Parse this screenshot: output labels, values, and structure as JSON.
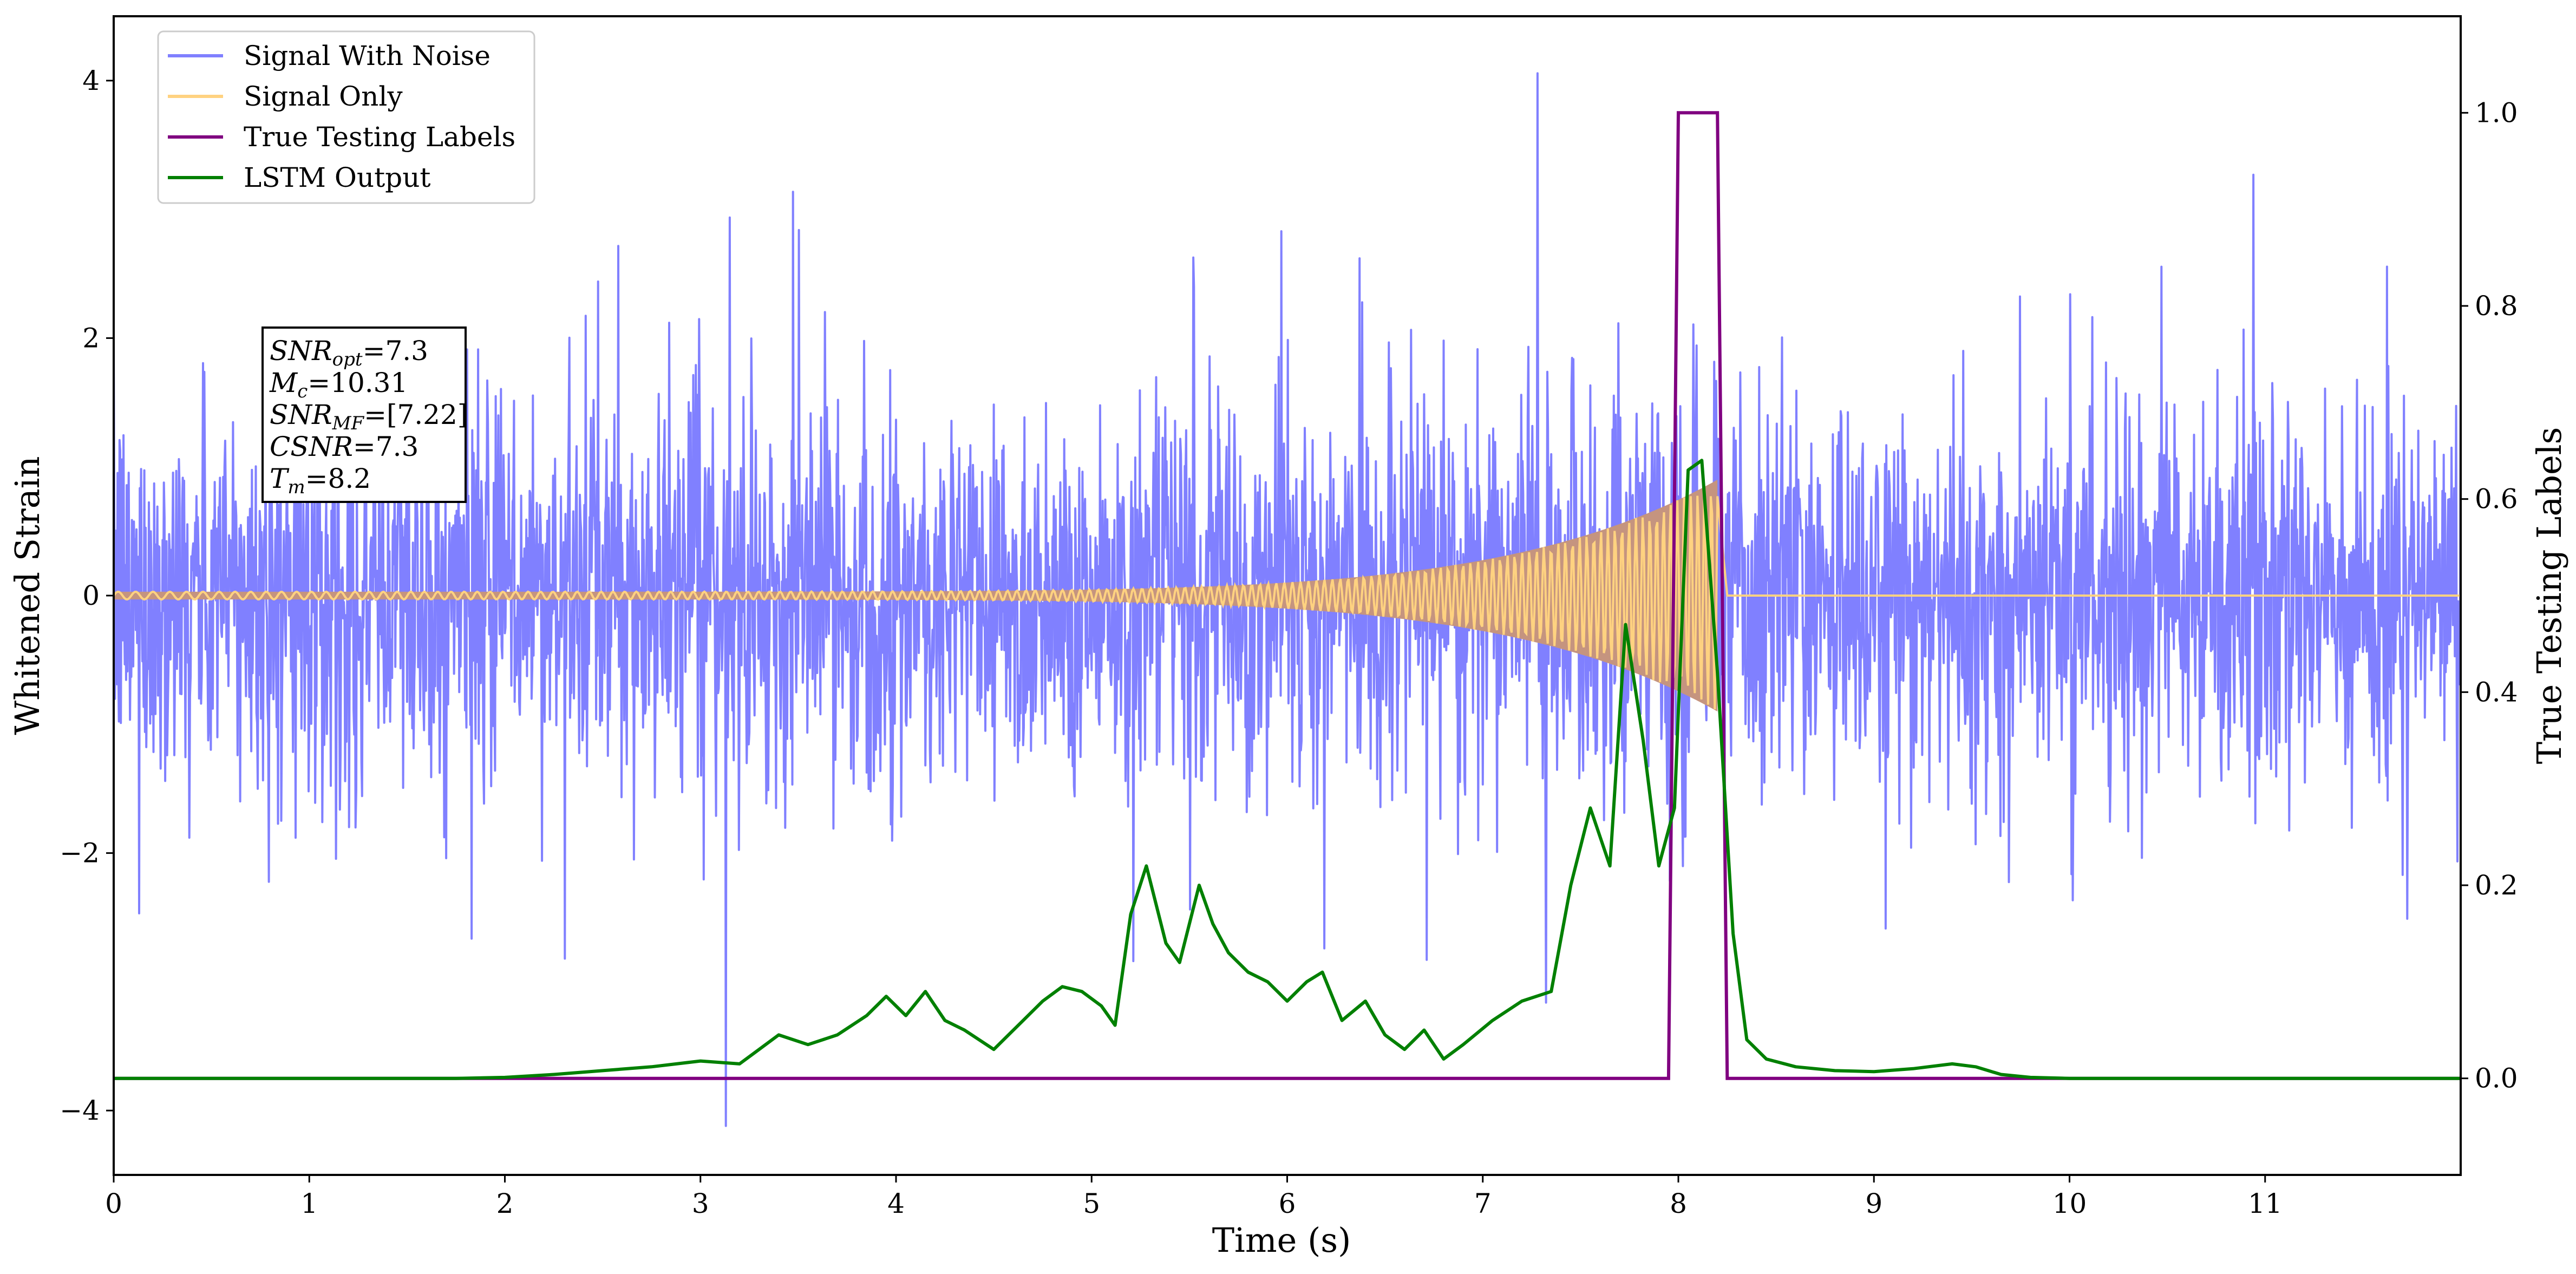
{
  "chart_data": {
    "type": "line",
    "xlabel": "Time (s)",
    "ylabel_left": "Whitened Strain",
    "ylabel_right": "True Testing Labels",
    "xlim": [
      0,
      12
    ],
    "ylim_left": [
      -4.5,
      4.5
    ],
    "ylim_right": [
      -0.1,
      1.1
    ],
    "xticks": [
      "0",
      "1",
      "2",
      "3",
      "4",
      "5",
      "6",
      "7",
      "8",
      "9",
      "10",
      "11"
    ],
    "yticks_left": [
      "−4",
      "−2",
      "0",
      "2",
      "4"
    ],
    "yticks_right": [
      "0.0",
      "0.2",
      "0.4",
      "0.6",
      "0.8",
      "1.0"
    ],
    "grid": false,
    "legend_position": "top-left",
    "series": [
      {
        "name": "Signal With Noise",
        "axis": "left",
        "color": "#8080ff",
        "description_values": {
          "typical_range": [
            -1.8,
            2.0
          ],
          "max_spike": 4.1,
          "max_spike_time": 7.28,
          "min_spike": -4.1,
          "min_spike_time": 3.13
        }
      },
      {
        "name": "Signal Only",
        "axis": "left",
        "color": "#ffd280",
        "chirp": {
          "start": 0.0,
          "merger": 8.2,
          "end": 8.25,
          "amp_start": 0.03,
          "amp_merger": 0.9
        }
      },
      {
        "name": "True Testing  Labels",
        "axis": "right",
        "color": "#800080",
        "x": [
          0,
          7.95,
          8.0,
          8.2,
          8.25,
          12
        ],
        "y": [
          0,
          0,
          1,
          1,
          0,
          0
        ]
      },
      {
        "name": "LSTM Output",
        "axis": "right",
        "color": "#008000",
        "x": [
          0.0,
          0.25,
          0.5,
          0.75,
          1.0,
          1.25,
          1.5,
          1.75,
          2.0,
          2.25,
          2.5,
          2.75,
          3.0,
          3.2,
          3.4,
          3.55,
          3.7,
          3.85,
          3.95,
          4.05,
          4.15,
          4.25,
          4.35,
          4.5,
          4.65,
          4.75,
          4.85,
          4.95,
          5.05,
          5.12,
          5.2,
          5.28,
          5.38,
          5.45,
          5.55,
          5.62,
          5.7,
          5.8,
          5.9,
          6.0,
          6.1,
          6.18,
          6.28,
          6.4,
          6.5,
          6.6,
          6.7,
          6.8,
          6.9,
          7.05,
          7.2,
          7.35,
          7.45,
          7.55,
          7.65,
          7.73,
          7.82,
          7.9,
          7.98,
          8.05,
          8.12,
          8.2,
          8.28,
          8.35,
          8.45,
          8.6,
          8.8,
          9.0,
          9.2,
          9.4,
          9.52,
          9.65,
          9.8,
          10.0,
          10.5,
          11.0,
          11.5,
          12.0
        ],
        "y": [
          0.0,
          0.0,
          0.0,
          0.0,
          0.0,
          0.0,
          0.0,
          0.0,
          0.001,
          0.004,
          0.008,
          0.012,
          0.018,
          0.015,
          0.045,
          0.035,
          0.045,
          0.065,
          0.085,
          0.065,
          0.09,
          0.06,
          0.05,
          0.03,
          0.06,
          0.08,
          0.095,
          0.09,
          0.075,
          0.055,
          0.17,
          0.22,
          0.14,
          0.12,
          0.2,
          0.16,
          0.13,
          0.11,
          0.1,
          0.08,
          0.1,
          0.11,
          0.06,
          0.08,
          0.045,
          0.03,
          0.05,
          0.02,
          0.035,
          0.06,
          0.08,
          0.09,
          0.2,
          0.28,
          0.22,
          0.47,
          0.35,
          0.22,
          0.28,
          0.63,
          0.64,
          0.42,
          0.15,
          0.04,
          0.02,
          0.012,
          0.008,
          0.007,
          0.01,
          0.015,
          0.012,
          0.004,
          0.001,
          0.0,
          0.0,
          0.0,
          0.0,
          0.0
        ]
      }
    ],
    "annotation": {
      "lines": [
        {
          "var": "SNR",
          "sub": "opt",
          "val": "=7.3"
        },
        {
          "var": "M",
          "sub": "c",
          "val": "=10.31"
        },
        {
          "var": "SNR",
          "sub": "MF",
          "val": "=[7.22]"
        },
        {
          "var": "CSNR",
          "sub": "",
          "val": "=7.3"
        },
        {
          "var": "T",
          "sub": "m",
          "val": "=8.2"
        }
      ]
    }
  }
}
